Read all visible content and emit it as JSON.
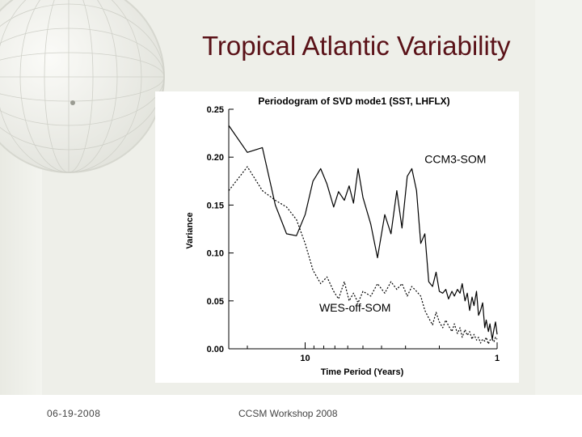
{
  "slide": {
    "title": "Tropical Atlantic Variability",
    "footer_date": "06-19-2008",
    "footer_conference": "CCSM Workshop 2008"
  },
  "colors": {
    "title": "#5a1218",
    "background": "#eeefe9",
    "line": "#000000"
  },
  "chart_data": {
    "type": "line",
    "title": "Periodogram of SVD mode1 (SST, LHFLX)",
    "xlabel": "Time Period (Years)",
    "ylabel": "Variance",
    "xscale": "log",
    "x_direction": "decreasing",
    "xlim": [
      25,
      1
    ],
    "ylim": [
      0,
      0.25
    ],
    "x_ticks": [
      10,
      1
    ],
    "x_tick_labels": [
      "10",
      "1"
    ],
    "y_ticks": [
      0.0,
      0.05,
      0.1,
      0.15,
      0.2,
      0.25
    ],
    "y_tick_labels": [
      "0.00",
      "0.05",
      "0.10",
      "0.15",
      "0.20",
      "0.25"
    ],
    "grid": false,
    "series": [
      {
        "name": "CCM3-SOM",
        "style": "solid",
        "x": [
          25,
          20,
          16.7,
          14.3,
          12.5,
          11.1,
          10,
          9.1,
          8.3,
          7.7,
          7.1,
          6.7,
          6.25,
          5.9,
          5.6,
          5.3,
          5,
          4.55,
          4.2,
          3.85,
          3.57,
          3.33,
          3.13,
          2.94,
          2.78,
          2.63,
          2.5,
          2.38,
          2.27,
          2.17,
          2.08,
          2.0,
          1.92,
          1.85,
          1.79,
          1.72,
          1.67,
          1.61,
          1.56,
          1.52,
          1.47,
          1.43,
          1.39,
          1.35,
          1.32,
          1.28,
          1.25,
          1.22,
          1.19,
          1.16,
          1.14,
          1.11,
          1.09,
          1.06,
          1.04,
          1.02,
          1.0
        ],
        "y": [
          0.233,
          0.205,
          0.21,
          0.15,
          0.12,
          0.118,
          0.14,
          0.175,
          0.188,
          0.172,
          0.148,
          0.164,
          0.155,
          0.17,
          0.152,
          0.188,
          0.158,
          0.13,
          0.095,
          0.14,
          0.12,
          0.165,
          0.126,
          0.18,
          0.188,
          0.165,
          0.11,
          0.12,
          0.07,
          0.065,
          0.08,
          0.06,
          0.058,
          0.062,
          0.052,
          0.06,
          0.055,
          0.062,
          0.058,
          0.068,
          0.05,
          0.058,
          0.04,
          0.054,
          0.045,
          0.06,
          0.035,
          0.04,
          0.048,
          0.022,
          0.03,
          0.018,
          0.026,
          0.01,
          0.02,
          0.028,
          0.015
        ]
      },
      {
        "name": "WES-off-SOM",
        "style": "dotted",
        "x": [
          25,
          20,
          16.7,
          14.3,
          12.5,
          11.1,
          10,
          9.1,
          8.3,
          7.7,
          7.1,
          6.7,
          6.25,
          5.9,
          5.6,
          5.3,
          5,
          4.55,
          4.2,
          3.85,
          3.57,
          3.33,
          3.13,
          2.94,
          2.78,
          2.63,
          2.5,
          2.38,
          2.27,
          2.17,
          2.08,
          2.0,
          1.92,
          1.85,
          1.79,
          1.72,
          1.67,
          1.61,
          1.56,
          1.52,
          1.47,
          1.43,
          1.39,
          1.35,
          1.32,
          1.28,
          1.25,
          1.22,
          1.19,
          1.16,
          1.14,
          1.11,
          1.09,
          1.06,
          1.04,
          1.02,
          1.0
        ],
        "y": [
          0.165,
          0.19,
          0.165,
          0.155,
          0.148,
          0.135,
          0.11,
          0.082,
          0.068,
          0.075,
          0.06,
          0.052,
          0.07,
          0.05,
          0.058,
          0.048,
          0.06,
          0.055,
          0.068,
          0.058,
          0.07,
          0.062,
          0.068,
          0.055,
          0.065,
          0.06,
          0.055,
          0.04,
          0.032,
          0.025,
          0.038,
          0.028,
          0.022,
          0.03,
          0.024,
          0.018,
          0.026,
          0.016,
          0.022,
          0.012,
          0.02,
          0.014,
          0.018,
          0.01,
          0.015,
          0.009,
          0.012,
          0.006,
          0.01,
          0.008,
          0.012,
          0.005,
          0.009,
          0.01,
          0.007,
          0.012,
          0.01
        ]
      }
    ],
    "annotations": [
      {
        "text": "CCM3-SOM",
        "x": 1.65,
        "y": 0.194
      },
      {
        "text": "WES-off-SOM",
        "x": 5.5,
        "y": 0.039
      }
    ]
  }
}
